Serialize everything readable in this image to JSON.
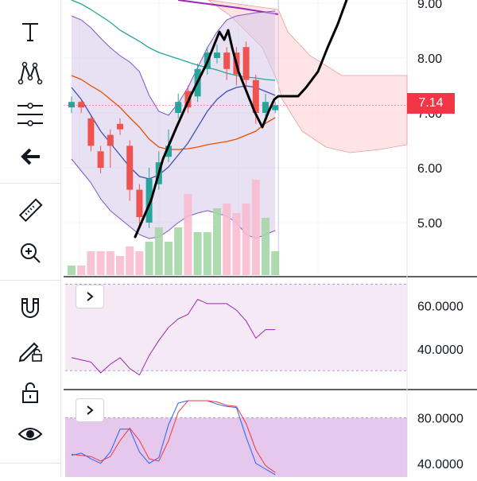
{
  "toolbar": {
    "tools": [
      {
        "icon": "text-tool-icon"
      },
      {
        "icon": "pattern-tool-icon"
      },
      {
        "icon": "fib-channel-icon"
      },
      {
        "icon": "back-arrow-icon"
      },
      {
        "icon": "ruler-icon"
      },
      {
        "icon": "zoom-in-icon"
      },
      {
        "icon": "magnet-icon"
      },
      {
        "icon": "lock-drawing-icon"
      },
      {
        "icon": "lock-icon"
      },
      {
        "icon": "eye-icon"
      }
    ]
  },
  "main_pane": {
    "price_axis_labels": [
      "9.00",
      "8.00",
      "7.00",
      "6.00",
      "5.00"
    ],
    "price_axis_values": [
      9.0,
      8.0,
      7.0,
      6.0,
      5.0
    ],
    "last_price_label": "7.14",
    "last_price_value": 7.14,
    "colors": {
      "up": "#26a69a",
      "down": "#ef5350",
      "last_price": "#f23645",
      "bollinger_fill": "#d1c4e9",
      "cloud_fill": "#ffcdd2"
    }
  },
  "oscillator_1": {
    "axis_labels": [
      "60.0000",
      "40.0000"
    ],
    "axis_values": [
      60,
      40
    ],
    "line_values": [
      36,
      35,
      34,
      29,
      33,
      36,
      31,
      28,
      37,
      44,
      50,
      54,
      56,
      63,
      61,
      61,
      61,
      58,
      53,
      45,
      49,
      49
    ],
    "line_color": "#9c27b0",
    "band_color": "#f3e5f5"
  },
  "oscillator_2": {
    "axis_labels": [
      "80.0000",
      "40.0000"
    ],
    "axis_values": [
      80,
      40
    ],
    "k_values": [
      47,
      49,
      44,
      40,
      50,
      70,
      70,
      50,
      40,
      45,
      74,
      93,
      95,
      95,
      95,
      92,
      90,
      89,
      63,
      40,
      35,
      30
    ],
    "d_values": [
      48,
      47,
      46,
      42,
      46,
      60,
      71,
      60,
      44,
      42,
      60,
      85,
      95,
      95,
      95,
      94,
      91,
      90,
      75,
      52,
      38,
      32
    ],
    "k_color": "#2962ff",
    "d_color": "#f23645",
    "band_color": "#e1bee7"
  },
  "chart_data": {
    "type": "candlestick",
    "x": [
      1,
      2,
      3,
      4,
      5,
      6,
      7,
      8,
      9,
      10,
      11,
      12,
      13,
      14,
      15,
      16,
      17,
      18,
      19,
      20,
      21,
      22
    ],
    "open": [
      7.1,
      7.2,
      6.9,
      6.3,
      6.6,
      6.8,
      6.4,
      5.6,
      5.0,
      5.7,
      6.2,
      7.0,
      7.4,
      7.3,
      7.8,
      8.0,
      8.1,
      8.1,
      8.2,
      7.6,
      7.0,
      7.05
    ],
    "close": [
      7.2,
      7.1,
      6.4,
      6.0,
      6.4,
      6.7,
      5.6,
      5.1,
      5.8,
      6.1,
      6.4,
      7.2,
      7.1,
      7.8,
      8.1,
      8.1,
      7.8,
      7.7,
      7.6,
      7.0,
      7.2,
      7.14
    ],
    "high": [
      7.3,
      7.25,
      6.95,
      6.4,
      6.7,
      6.9,
      6.5,
      5.7,
      6.0,
      6.3,
      6.7,
      7.35,
      7.5,
      7.9,
      8.2,
      8.25,
      8.2,
      8.2,
      8.3,
      7.7,
      7.35,
      7.2
    ],
    "low": [
      7.0,
      7.0,
      6.3,
      5.9,
      6.0,
      6.6,
      5.4,
      4.9,
      4.9,
      5.6,
      6.1,
      6.9,
      7.0,
      7.2,
      7.7,
      7.9,
      7.6,
      7.5,
      7.4,
      6.8,
      6.9,
      7.0
    ],
    "volume": [
      0.2,
      0.2,
      0.5,
      0.5,
      0.5,
      0.4,
      0.6,
      0.5,
      0.7,
      1.0,
      0.7,
      1.0,
      1.7,
      0.9,
      0.9,
      1.4,
      1.5,
      1.3,
      1.5,
      2.0,
      1.2,
      0.5
    ],
    "ylim": [
      4.0,
      9.2
    ]
  }
}
